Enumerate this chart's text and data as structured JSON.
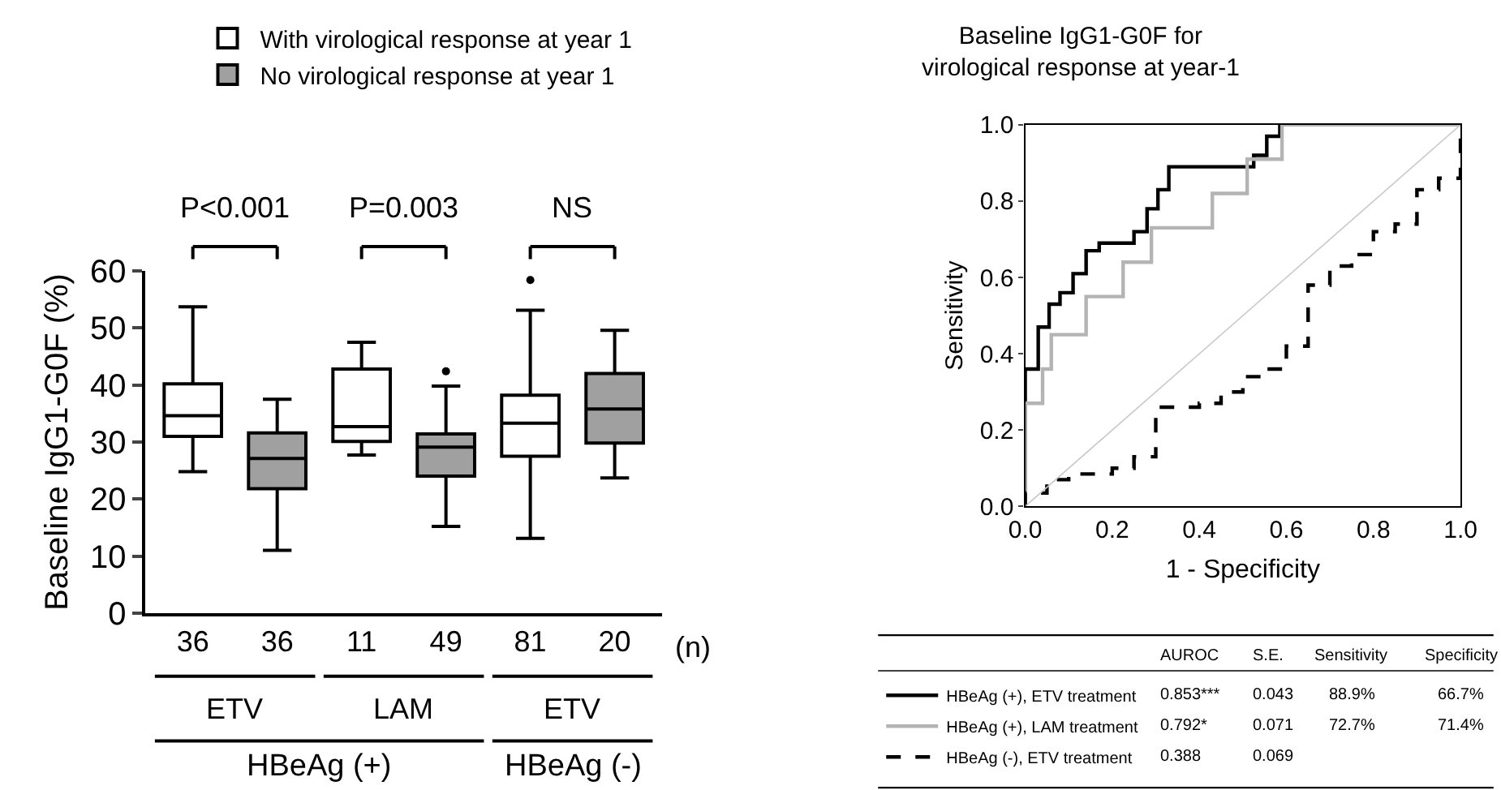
{
  "chart_data": [
    {
      "type": "box",
      "ylabel": "Baseline IgG1-G0F (%)",
      "categories": [
        "36",
        "36",
        "11",
        "49",
        "81",
        "20"
      ],
      "ylim": [
        0,
        60
      ],
      "yticks": [
        0,
        10,
        20,
        30,
        40,
        50,
        60
      ],
      "legend": "top",
      "series": [
        {
          "name": "With virological response at year 1",
          "color": "#ffffff",
          "boxes": [
            {
              "low": 24.8,
              "q1": 31.0,
              "median": 34.6,
              "q3": 40.2,
              "high": 53.7
            },
            null,
            {
              "low": 27.7,
              "q1": 30.1,
              "median": 32.7,
              "q3": 42.8,
              "high": 47.5
            },
            null,
            {
              "low": 13.1,
              "q1": 27.5,
              "median": 33.3,
              "q3": 38.2,
              "high": 53.1,
              "outliers": [
                58.4
              ]
            },
            null
          ]
        },
        {
          "name": "No virological response at year 1",
          "color": "#a0a0a0",
          "boxes": [
            null,
            {
              "low": 11.0,
              "q1": 21.8,
              "median": 27.1,
              "q3": 31.6,
              "high": 37.5
            },
            null,
            {
              "low": 15.2,
              "q1": 24.0,
              "median": 29.1,
              "q3": 31.4,
              "high": 39.8,
              "outliers": [
                42.4
              ]
            },
            null,
            {
              "low": 23.7,
              "q1": 29.8,
              "median": 35.8,
              "q3": 42.0,
              "high": 49.6
            }
          ]
        }
      ],
      "annotations": [
        "P<0.001",
        "P=0.003",
        "NS",
        "(n)",
        "ETV",
        "LAM",
        "ETV",
        "HBeAg (+)",
        "HBeAg (-)"
      ]
    },
    {
      "type": "step",
      "title": "Baseline IgG1-G0F for virological response at year-1",
      "xlabel": "1 - Specificity",
      "ylabel": "Sensitivity",
      "xlim": [
        0,
        1
      ],
      "ylim": [
        0,
        1
      ],
      "xticks": [
        {
          "value": 0,
          "label": "0.0"
        },
        {
          "value": 0.2,
          "label": "0.2"
        },
        {
          "value": 0.4,
          "label": "0.4"
        },
        {
          "value": 0.6,
          "label": "0.6"
        },
        {
          "value": 0.8,
          "label": "0.8"
        },
        {
          "value": 1,
          "label": "1.0"
        }
      ],
      "yticks": [
        {
          "value": 0,
          "label": "0.0"
        },
        {
          "value": 0.2,
          "label": "0.2"
        },
        {
          "value": 0.4,
          "label": "0.4"
        },
        {
          "value": 0.6,
          "label": "0.6"
        },
        {
          "value": 0.8,
          "label": "0.8"
        },
        {
          "value": 1,
          "label": "1.0"
        }
      ],
      "legend": "bottom left",
      "series": [
        {
          "name": "HBeAg (+), ETV treatment",
          "color": "#000000",
          "line_style": "solid",
          "x": [
            0,
            0,
            0.03,
            0.055,
            0.08,
            0.11,
            0.14,
            0.17,
            0.25,
            0.28,
            0.305,
            0.33,
            0.525,
            0.555,
            0.585,
            1
          ],
          "values": [
            0,
            0.36,
            0.47,
            0.53,
            0.56,
            0.61,
            0.67,
            0.69,
            0.72,
            0.78,
            0.83,
            0.89,
            0.92,
            0.97,
            1.0,
            1.0
          ]
        },
        {
          "name": "HBeAg (+), LAM treatment",
          "color": "#b4b4b4",
          "line_style": "solid",
          "x": [
            0,
            0,
            0.04,
            0.06,
            0.14,
            0.225,
            0.29,
            0.43,
            0.51,
            0.59,
            1
          ],
          "values": [
            0,
            0.27,
            0.36,
            0.45,
            0.55,
            0.64,
            0.73,
            0.82,
            0.91,
            1.0,
            1.0
          ]
        },
        {
          "name": "HBeAg (-), ETV treatment",
          "color": "#000000",
          "line_style": "dashed",
          "x": [
            0,
            0,
            0.05,
            0.1,
            0.2,
            0.25,
            0.3,
            0.4,
            0.45,
            0.5,
            0.55,
            0.6,
            0.65,
            0.7,
            0.75,
            0.8,
            0.85,
            0.9,
            0.95,
            1
          ],
          "values": [
            0,
            0.035,
            0.07,
            0.085,
            0.1,
            0.13,
            0.26,
            0.27,
            0.3,
            0.34,
            0.36,
            0.42,
            0.58,
            0.63,
            0.66,
            0.72,
            0.74,
            0.83,
            0.86,
            1.0
          ]
        },
        {
          "type": "line",
          "color": "#c8c8c8",
          "x": [
            0,
            1
          ],
          "values": [
            0,
            1
          ]
        }
      ],
      "annotations": [
        "AUROC",
        "S.E.",
        "Sensitivity",
        "Specificity",
        "0.853***",
        "0.043",
        "88.9%",
        "66.7%",
        "0.792*",
        "0.071",
        "72.7%",
        "71.4%",
        "0.388",
        "0.069"
      ]
    }
  ]
}
